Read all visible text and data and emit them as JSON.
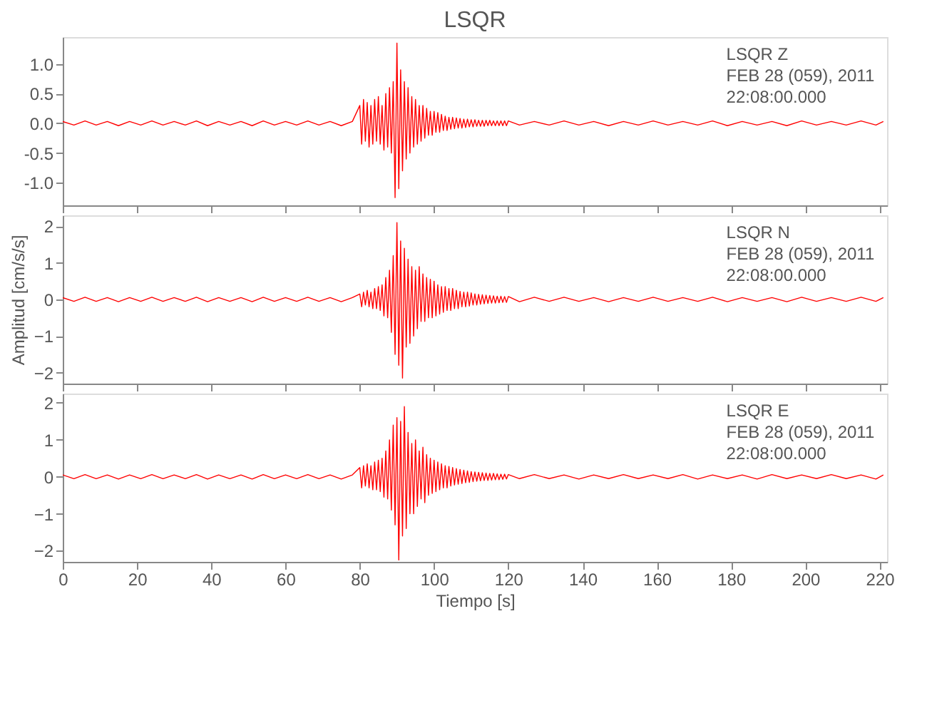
{
  "chart_data": [
    {
      "type": "line",
      "title": "LSQR",
      "xlim": [
        0,
        222
      ],
      "xticks": [
        0,
        20,
        40,
        60,
        80,
        100,
        120,
        140,
        160,
        180,
        200,
        220
      ],
      "ylim": [
        -1.38,
        1.45
      ],
      "yticks": [
        {
          "value": -1.0,
          "label": "-1.0"
        },
        {
          "value": -0.5,
          "label": "-0.5"
        },
        {
          "value": 0,
          "label": "0.0"
        },
        {
          "value": 0.5,
          "label": "0.5"
        },
        {
          "value": 1.0,
          "label": "1.0"
        }
      ],
      "tick_labels": "y",
      "grid": false,
      "annotations": [
        "LSQR   Z",
        "FEB 28 (059), 2011",
        "22:08:00.000"
      ],
      "series": [
        {
          "color": "#ff0000",
          "x": [
            0,
            3,
            6,
            9,
            12,
            15,
            18,
            21,
            24,
            27,
            30,
            33,
            36,
            39,
            42,
            45,
            48,
            51,
            54,
            57,
            60,
            63,
            66,
            69,
            72,
            75,
            78,
            80,
            80.5,
            81,
            81.5,
            82,
            82.5,
            83,
            83.5,
            84,
            84.5,
            85,
            85.5,
            86,
            86.5,
            87,
            87.5,
            88,
            88.5,
            89,
            89.5,
            90,
            90.5,
            91,
            91.5,
            92,
            92.5,
            93,
            93.5,
            94,
            94.5,
            95,
            95.5,
            96,
            96.5,
            97,
            97.5,
            98,
            98.5,
            99,
            99.5,
            100,
            100.5,
            101,
            101.5,
            102,
            102.5,
            103,
            103.5,
            104,
            104.5,
            105,
            105.5,
            106,
            106.5,
            107,
            107.5,
            108,
            108.5,
            109,
            109.5,
            110,
            110.5,
            111,
            111.5,
            112,
            112.5,
            113,
            113.5,
            114,
            114.5,
            115,
            115.5,
            116,
            116.5,
            117,
            117.5,
            118,
            118.5,
            119,
            119.5,
            120,
            123,
            127,
            131,
            135,
            139,
            143,
            147,
            151,
            155,
            159,
            163,
            167,
            171,
            175,
            179,
            183,
            187,
            191,
            195,
            199,
            203,
            207,
            211,
            215,
            219,
            221
          ],
          "values": [
            0.03,
            -0.03,
            0.04,
            -0.03,
            0.03,
            -0.04,
            0.03,
            -0.03,
            0.04,
            -0.03,
            0.03,
            -0.03,
            0.04,
            -0.04,
            0.03,
            -0.03,
            0.03,
            -0.04,
            0.04,
            -0.03,
            0.03,
            -0.03,
            0.04,
            -0.03,
            0.03,
            -0.04,
            0.03,
            0.3,
            -0.35,
            0.4,
            -0.3,
            0.35,
            -0.4,
            0.3,
            -0.35,
            0.4,
            -0.3,
            0.45,
            -0.35,
            0.3,
            -0.45,
            0.5,
            -0.4,
            0.6,
            -0.5,
            0.7,
            -1.25,
            1.35,
            -1.1,
            0.9,
            -0.8,
            0.7,
            -0.6,
            0.6,
            -0.5,
            0.45,
            -0.4,
            0.4,
            -0.35,
            0.3,
            -0.3,
            0.3,
            -0.25,
            0.25,
            -0.2,
            0.2,
            -0.2,
            0.2,
            -0.15,
            0.18,
            -0.15,
            0.15,
            -0.12,
            0.12,
            -0.12,
            0.1,
            -0.1,
            0.1,
            -0.09,
            0.09,
            -0.08,
            0.08,
            -0.08,
            0.07,
            -0.07,
            0.07,
            -0.06,
            0.06,
            -0.06,
            0.06,
            -0.05,
            0.05,
            -0.05,
            0.05,
            -0.05,
            0.05,
            -0.04,
            0.05,
            -0.04,
            0.04,
            -0.04,
            0.04,
            -0.04,
            0.04,
            -0.04,
            0.04,
            -0.04,
            0.04,
            -0.03,
            0.03,
            -0.03,
            0.04,
            -0.03,
            0.03,
            -0.04,
            0.03,
            -0.03,
            0.04,
            -0.03,
            0.03,
            -0.03,
            0.04,
            -0.04,
            0.03,
            -0.03,
            0.03,
            -0.04,
            0.04,
            -0.03,
            0.03,
            -0.03,
            0.04,
            -0.03,
            0.03
          ]
        }
      ]
    },
    {
      "type": "line",
      "ylabel": "Amplitud [cm/s/s]",
      "xlim": [
        0,
        222
      ],
      "xticks": [
        0,
        20,
        40,
        60,
        80,
        100,
        120,
        140,
        160,
        180,
        200,
        220
      ],
      "ylim": [
        -2.3,
        2.3
      ],
      "yticks": [
        -2,
        -1,
        0,
        1,
        2
      ],
      "tick_labels": "y",
      "grid": false,
      "annotations": [
        "LSQR   N",
        "FEB 28 (059), 2011",
        "22:08:00.000"
      ],
      "series": [
        {
          "color": "#ff0000",
          "x": [
            0,
            3,
            6,
            9,
            12,
            15,
            18,
            21,
            24,
            27,
            30,
            33,
            36,
            39,
            42,
            45,
            48,
            51,
            54,
            57,
            60,
            63,
            66,
            69,
            72,
            75,
            78,
            80,
            80.5,
            81,
            81.5,
            82,
            82.5,
            83,
            83.5,
            84,
            84.5,
            85,
            85.5,
            86,
            86.5,
            87,
            87.5,
            88,
            88.5,
            89,
            89.5,
            90,
            90.5,
            91,
            91.5,
            92,
            92.5,
            93,
            93.5,
            94,
            94.5,
            95,
            95.5,
            96,
            96.5,
            97,
            97.5,
            98,
            98.5,
            99,
            99.5,
            100,
            100.5,
            101,
            101.5,
            102,
            102.5,
            103,
            103.5,
            104,
            104.5,
            105,
            105.5,
            106,
            106.5,
            107,
            107.5,
            108,
            108.5,
            109,
            109.5,
            110,
            110.5,
            111,
            111.5,
            112,
            112.5,
            113,
            113.5,
            114,
            114.5,
            115,
            115.5,
            116,
            116.5,
            117,
            117.5,
            118,
            118.5,
            119,
            119.5,
            120,
            123,
            127,
            131,
            135,
            139,
            143,
            147,
            151,
            155,
            159,
            163,
            167,
            171,
            175,
            179,
            183,
            187,
            191,
            195,
            199,
            203,
            207,
            211,
            215,
            219,
            221
          ],
          "values": [
            0.05,
            -0.05,
            0.06,
            -0.05,
            0.05,
            -0.06,
            0.05,
            -0.05,
            0.06,
            -0.05,
            0.05,
            -0.05,
            0.06,
            -0.06,
            0.05,
            -0.05,
            0.05,
            -0.06,
            0.06,
            -0.05,
            0.05,
            -0.05,
            0.06,
            -0.05,
            0.05,
            -0.06,
            0.05,
            0.15,
            -0.2,
            0.2,
            -0.15,
            0.25,
            -0.2,
            0.2,
            -0.25,
            0.3,
            -0.25,
            0.35,
            -0.3,
            0.4,
            -0.45,
            0.6,
            -0.5,
            0.8,
            -0.9,
            1.2,
            -1.5,
            2.1,
            -1.8,
            1.6,
            -2.15,
            1.4,
            -1.3,
            1.1,
            -1.2,
            0.9,
            -1.0,
            0.8,
            -0.8,
            0.9,
            -0.6,
            0.7,
            -0.6,
            0.6,
            -0.5,
            0.55,
            -0.5,
            0.5,
            -0.45,
            0.4,
            -0.4,
            0.35,
            -0.35,
            0.35,
            -0.3,
            0.3,
            -0.3,
            0.3,
            -0.25,
            0.25,
            -0.25,
            0.22,
            -0.2,
            0.2,
            -0.2,
            0.2,
            -0.18,
            0.18,
            -0.15,
            0.15,
            -0.15,
            0.14,
            -0.13,
            0.13,
            -0.12,
            0.12,
            -0.11,
            0.11,
            -0.1,
            0.1,
            -0.1,
            0.09,
            -0.09,
            0.09,
            -0.08,
            0.08,
            -0.08,
            0.08,
            -0.06,
            0.06,
            -0.05,
            0.06,
            -0.05,
            0.05,
            -0.06,
            0.05,
            -0.05,
            0.06,
            -0.05,
            0.05,
            -0.05,
            0.06,
            -0.06,
            0.05,
            -0.05,
            0.05,
            -0.06,
            0.06,
            -0.05,
            0.05,
            -0.05,
            0.06,
            -0.05,
            0.05
          ]
        }
      ]
    },
    {
      "type": "line",
      "xlabel": "Tiempo [s]",
      "xlim": [
        0,
        222
      ],
      "xticks": [
        0,
        20,
        40,
        60,
        80,
        100,
        120,
        140,
        160,
        180,
        200,
        220
      ],
      "ylim": [
        -2.3,
        2.25
      ],
      "yticks": [
        -2,
        -1,
        0,
        1,
        2
      ],
      "grid": false,
      "annotations": [
        "LSQR   E",
        "FEB 28 (059), 2011",
        "22:08:00.000"
      ],
      "series": [
        {
          "color": "#ff0000",
          "x": [
            0,
            3,
            6,
            9,
            12,
            15,
            18,
            21,
            24,
            27,
            30,
            33,
            36,
            39,
            42,
            45,
            48,
            51,
            54,
            57,
            60,
            63,
            66,
            69,
            72,
            75,
            78,
            80,
            80.5,
            81,
            81.5,
            82,
            82.5,
            83,
            83.5,
            84,
            84.5,
            85,
            85.5,
            86,
            86.5,
            87,
            87.5,
            88,
            88.5,
            89,
            89.5,
            90,
            90.5,
            91,
            91.5,
            92,
            92.5,
            93,
            93.5,
            94,
            94.5,
            95,
            95.5,
            96,
            96.5,
            97,
            97.5,
            98,
            98.5,
            99,
            99.5,
            100,
            100.5,
            101,
            101.5,
            102,
            102.5,
            103,
            103.5,
            104,
            104.5,
            105,
            105.5,
            106,
            106.5,
            107,
            107.5,
            108,
            108.5,
            109,
            109.5,
            110,
            110.5,
            111,
            111.5,
            112,
            112.5,
            113,
            113.5,
            114,
            114.5,
            115,
            115.5,
            116,
            116.5,
            117,
            117.5,
            118,
            118.5,
            119,
            119.5,
            120,
            123,
            127,
            131,
            135,
            139,
            143,
            147,
            151,
            155,
            159,
            163,
            167,
            171,
            175,
            179,
            183,
            187,
            191,
            195,
            199,
            203,
            207,
            211,
            215,
            219,
            221
          ],
          "values": [
            0.05,
            -0.05,
            0.06,
            -0.05,
            0.05,
            -0.06,
            0.05,
            -0.05,
            0.06,
            -0.05,
            0.05,
            -0.05,
            0.06,
            -0.06,
            0.05,
            -0.05,
            0.05,
            -0.06,
            0.06,
            -0.05,
            0.05,
            -0.05,
            0.06,
            -0.05,
            0.05,
            -0.06,
            0.05,
            0.25,
            -0.3,
            0.3,
            -0.25,
            0.35,
            -0.3,
            0.3,
            -0.35,
            0.4,
            -0.35,
            0.45,
            -0.4,
            0.5,
            -0.55,
            0.7,
            -0.6,
            1.0,
            -0.9,
            1.4,
            -1.3,
            1.6,
            -2.25,
            1.5,
            -1.6,
            1.9,
            -1.4,
            1.2,
            -1.0,
            0.9,
            -1.0,
            1.0,
            -0.8,
            0.7,
            -0.6,
            0.8,
            -0.7,
            0.6,
            -0.5,
            0.5,
            -0.45,
            0.45,
            -0.4,
            0.4,
            -0.35,
            0.35,
            -0.3,
            0.3,
            -0.3,
            0.28,
            -0.25,
            0.25,
            -0.22,
            0.22,
            -0.2,
            0.2,
            -0.18,
            0.18,
            -0.16,
            0.16,
            -0.15,
            0.14,
            -0.13,
            0.13,
            -0.12,
            0.12,
            -0.11,
            0.11,
            -0.1,
            0.1,
            -0.1,
            0.09,
            -0.09,
            0.09,
            -0.08,
            0.08,
            -0.08,
            0.07,
            -0.07,
            0.07,
            -0.06,
            0.06,
            -0.05,
            0.06,
            -0.05,
            0.05,
            -0.06,
            0.05,
            -0.05,
            0.06,
            -0.05,
            0.05,
            -0.05,
            0.06,
            -0.06,
            0.05,
            -0.05,
            0.05,
            -0.06,
            0.06,
            -0.05,
            0.05,
            -0.05,
            0.06,
            -0.05,
            0.05,
            -0.06,
            0.05
          ]
        }
      ]
    }
  ]
}
